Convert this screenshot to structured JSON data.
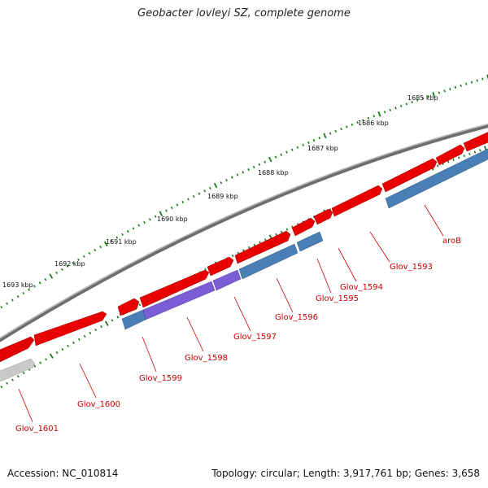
{
  "title": "Geobacter lovleyi SZ, complete genome",
  "accession": "Accession: NC_010814",
  "summary": "Topology: circular; Length: 3,917,761 bp; Genes: 3,658",
  "colors": {
    "forward_gene": "#ff0000",
    "reverse_gene": "#4a7fb5",
    "purple_gene": "#7b5ed6",
    "grey_gene": "#c8c8c8",
    "backbone": "#7a7a7a",
    "tick": "#1a7a1a",
    "label": "#cc0000"
  },
  "scale_labels": [
    "1685 kbp",
    "1686 kbp",
    "1687 kbp",
    "1688 kbp",
    "1689 kbp",
    "1690 kbp",
    "1691 kbp",
    "1692 kbp",
    "1693 kbp"
  ],
  "gene_labels": [
    "aroB",
    "Glov_1593",
    "Glov_1594",
    "Glov_1595",
    "Glov_1596",
    "Glov_1597",
    "Glov_1598",
    "Glov_1599",
    "Glov_1600",
    "Glov_1601"
  ]
}
